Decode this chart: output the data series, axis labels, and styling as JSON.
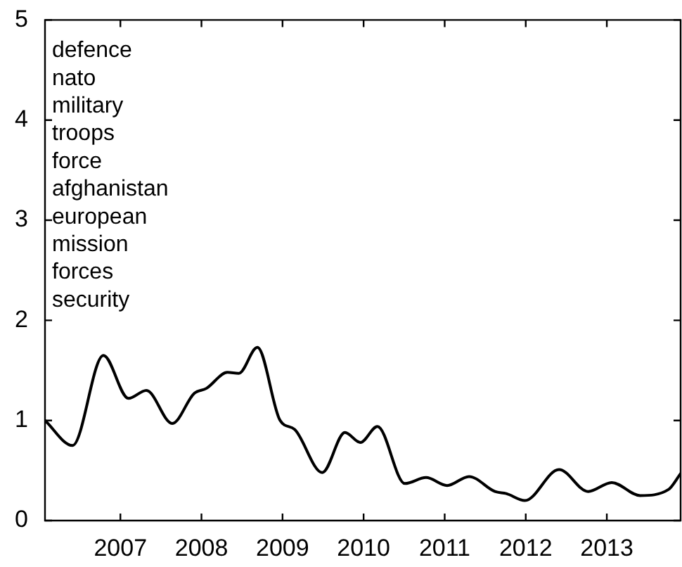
{
  "chart_data": {
    "type": "line",
    "x": [
      2006.07,
      2006.41,
      2006.79,
      2007.1,
      2007.32,
      2007.64,
      2007.91,
      2008.06,
      2008.32,
      2008.46,
      2008.69,
      2008.97,
      2009.15,
      2009.49,
      2009.77,
      2009.96,
      2010.17,
      2010.51,
      2010.77,
      2011.03,
      2011.3,
      2011.62,
      2011.76,
      2011.99,
      2012.41,
      2012.77,
      2013.06,
      2013.41,
      2013.76,
      2013.91
    ],
    "series": [
      {
        "color": "#000000",
        "values": [
          1.0,
          0.75,
          1.65,
          1.22,
          1.3,
          0.97,
          1.27,
          1.32,
          1.48,
          1.47,
          1.73,
          1.0,
          0.91,
          0.48,
          0.88,
          0.78,
          0.94,
          0.37,
          0.43,
          0.35,
          0.44,
          0.29,
          0.27,
          0.2,
          0.51,
          0.29,
          0.38,
          0.25,
          0.31,
          0.47
        ]
      }
    ],
    "xlim": [
      2006.07,
      2013.91
    ],
    "xticks": [
      2007,
      2008,
      2009,
      2010,
      2011,
      2012,
      2013
    ],
    "ylim": [
      0,
      5
    ],
    "yticks": [
      0,
      1,
      2,
      3,
      4,
      5
    ],
    "grid": false,
    "legend": false,
    "marker": "none",
    "line_style": "solid",
    "annotations": [
      "defence",
      "nato",
      "military",
      "troops",
      "force",
      "afghanistan",
      "european",
      "mission",
      "forces",
      "security"
    ]
  }
}
